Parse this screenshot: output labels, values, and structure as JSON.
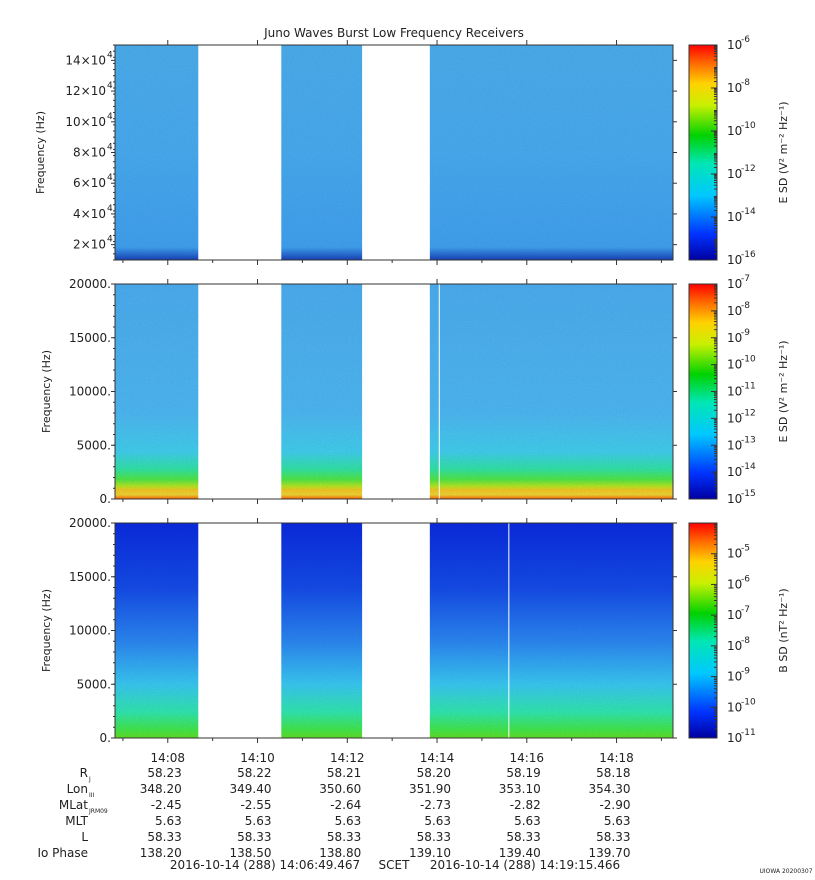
{
  "title": "Juno Waves Burst Low Frequency Receivers",
  "chart_data": [
    {
      "type": "heatmap",
      "ylabel": "Frequency (Hz)",
      "ylim": [
        10000,
        150000
      ],
      "yticks": [
        {
          "value": 20000,
          "label": "2×10",
          "exp": "4"
        },
        {
          "value": 40000,
          "label": "4×10",
          "exp": "4"
        },
        {
          "value": 60000,
          "label": "6×10",
          "exp": "4"
        },
        {
          "value": 80000,
          "label": "8×10",
          "exp": "4"
        },
        {
          "value": 100000,
          "label": "10×10",
          "exp": "4"
        },
        {
          "value": 120000,
          "label": "12×10",
          "exp": "4"
        },
        {
          "value": 140000,
          "label": "14×10",
          "exp": "4"
        }
      ],
      "colorbar": {
        "label": "E SD (V² m⁻² Hz⁻¹)",
        "min_exp": -16,
        "max_exp": -6,
        "ticks": [
          "-6",
          "-8",
          "-10",
          "-12",
          "-14",
          "-16"
        ]
      }
    },
    {
      "type": "heatmap",
      "ylabel": "Frequency (Hz)",
      "ylim": [
        0,
        20000
      ],
      "yticks": [
        {
          "value": 0,
          "label": "0."
        },
        {
          "value": 5000,
          "label": "5000."
        },
        {
          "value": 10000,
          "label": "10000."
        },
        {
          "value": 15000,
          "label": "15000."
        },
        {
          "value": 20000,
          "label": "20000."
        }
      ],
      "colorbar": {
        "label": "E SD (V² m⁻² Hz⁻¹)",
        "min_exp": -15,
        "max_exp": -7,
        "ticks": [
          "-7",
          "-8",
          "-9",
          "-10",
          "-11",
          "-12",
          "-13",
          "-14",
          "-15"
        ]
      }
    },
    {
      "type": "heatmap",
      "ylabel": "Frequency (Hz)",
      "ylim": [
        0,
        20000
      ],
      "yticks": [
        {
          "value": 0,
          "label": "0."
        },
        {
          "value": 5000,
          "label": "5000."
        },
        {
          "value": 10000,
          "label": "10000."
        },
        {
          "value": 15000,
          "label": "15000."
        },
        {
          "value": 20000,
          "label": "20000."
        }
      ],
      "colorbar": {
        "label": "B SD (nT² Hz⁻¹)",
        "min_exp": -11,
        "max_exp": -4,
        "ticks": [
          "-5",
          "-6",
          "-7",
          "-8",
          "-9",
          "-10",
          "-11"
        ]
      }
    }
  ],
  "time_axis": {
    "start_min": 6.824,
    "end_min": 19.258,
    "data_blocks": [
      [
        6.824,
        8.68
      ],
      [
        10.53,
        12.33
      ],
      [
        13.84,
        19.258
      ]
    ],
    "tick_labels": [
      {
        "label": "14:08",
        "min": 8
      },
      {
        "label": "14:10",
        "min": 10
      },
      {
        "label": "14:12",
        "min": 12
      },
      {
        "label": "14:14",
        "min": 14
      },
      {
        "label": "14:16",
        "min": 16
      },
      {
        "label": "14:18",
        "min": 18
      }
    ]
  },
  "ephemeris": {
    "rows": [
      {
        "name": "R",
        "sub": "J",
        "values": [
          "58.23",
          "58.22",
          "58.21",
          "58.20",
          "58.19",
          "58.18"
        ]
      },
      {
        "name": "Lon",
        "sub": "III",
        "values": [
          "348.20",
          "349.40",
          "350.60",
          "351.90",
          "353.10",
          "354.30"
        ]
      },
      {
        "name": "MLat",
        "sub": "JRM09",
        "values": [
          "-2.45",
          "-2.55",
          "-2.64",
          "-2.73",
          "-2.82",
          "-2.90"
        ]
      },
      {
        "name": "MLT",
        "sub": "",
        "values": [
          "5.63",
          "5.63",
          "5.63",
          "5.63",
          "5.63",
          "5.63"
        ]
      },
      {
        "name": "L",
        "sub": "",
        "values": [
          "58.33",
          "58.33",
          "58.33",
          "58.33",
          "58.33",
          "58.33"
        ]
      },
      {
        "name": "Io Phase",
        "sub": "",
        "values": [
          "138.20",
          "138.50",
          "138.80",
          "139.10",
          "139.40",
          "139.70"
        ]
      }
    ]
  },
  "footer": {
    "start": "2016-10-14 (288) 14:06:49.467",
    "scet": "SCET",
    "end": "2016-10-14 (288) 14:19:15.466",
    "stamp": "UIOWA 20200307"
  }
}
